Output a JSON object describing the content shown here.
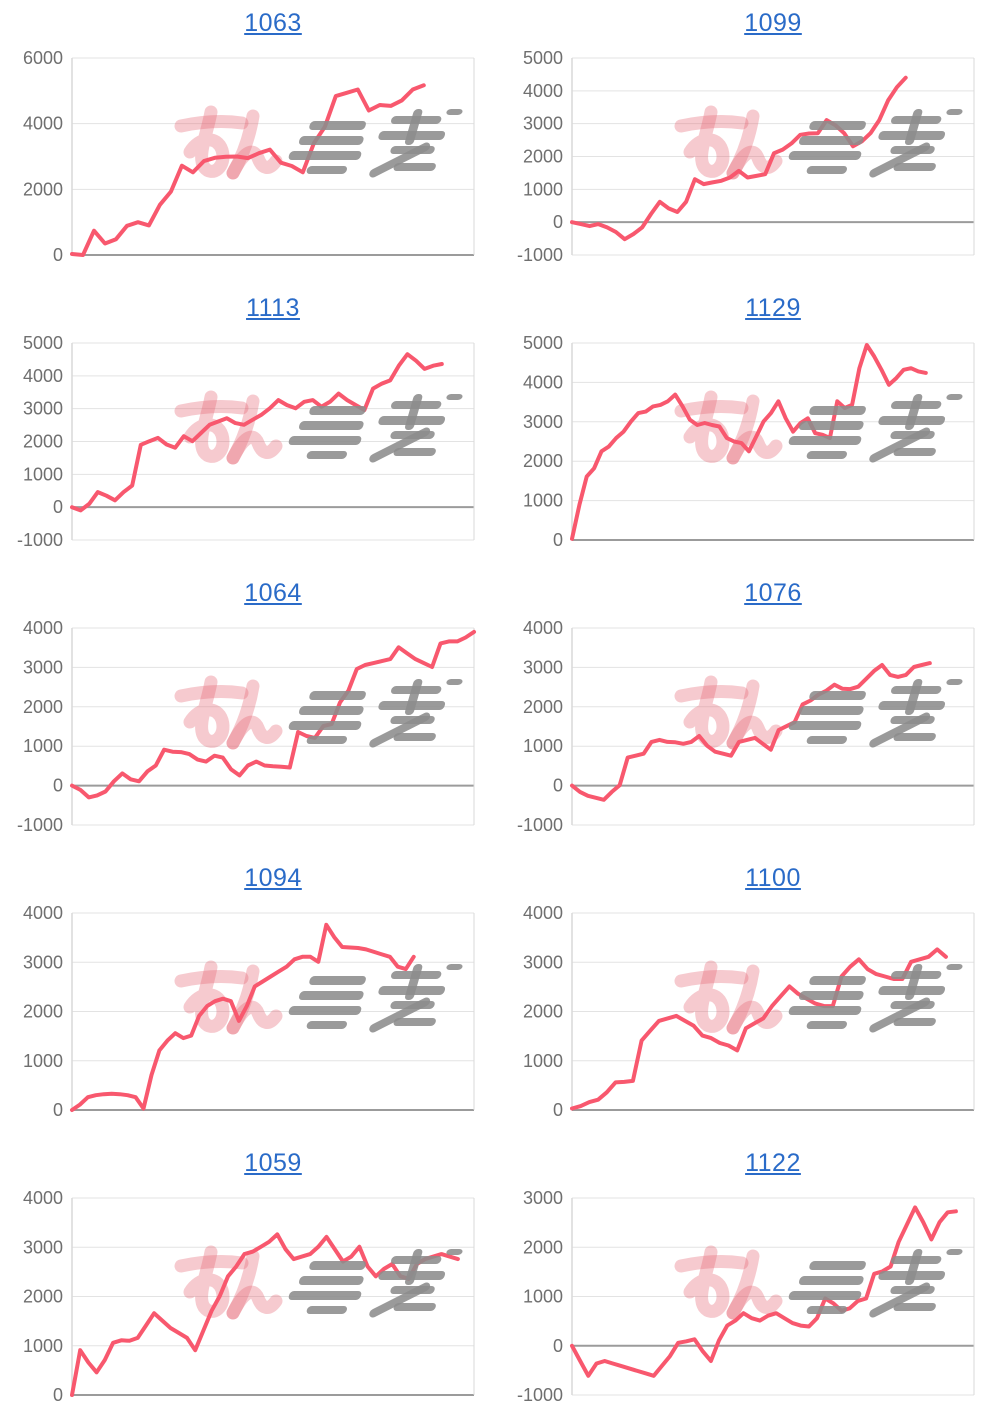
{
  "page": {
    "background": "#ffffff",
    "layout": "2x5 grid of daily slump graphs",
    "watermark": {
      "description": "site logo watermark, pink kana + gray speed-line glyphs",
      "pink_color": "rgba(228,100,114,0.34)",
      "gray_color": "rgba(140,140,140,0.88)"
    }
  },
  "styles": {
    "line_color": "#F8586E",
    "title_color": "#2A6BC8",
    "tick_color": "#6F6F6F",
    "grid_color": "#E3E3E3",
    "zero_line_color": "#9B9B9B",
    "border_color": "#D9D9D9"
  },
  "chart_data": [
    {
      "type": "line",
      "title": "1063",
      "xlabel": "",
      "ylabel": "",
      "ylim": [
        0,
        6000
      ],
      "ytick_step": 2000,
      "grid": "horizontal",
      "legend": "none",
      "x_extent": 0.875,
      "values": [
        30,
        0,
        740,
        350,
        480,
        890,
        1000,
        900,
        1530,
        1930,
        2720,
        2520,
        2860,
        2960,
        2990,
        3000,
        2950,
        3100,
        3210,
        2810,
        2710,
        2520,
        3400,
        3900,
        4840,
        4940,
        5040,
        4400,
        4570,
        4540,
        4710,
        5040,
        5170
      ]
    },
    {
      "type": "line",
      "title": "1099",
      "xlabel": "",
      "ylabel": "",
      "ylim": [
        -1000,
        5000
      ],
      "ytick_step": 1000,
      "grid": "horizontal",
      "legend": "none",
      "x_extent": 0.83,
      "values": [
        0,
        -60,
        -120,
        -60,
        -160,
        -300,
        -520,
        -360,
        -160,
        250,
        620,
        420,
        310,
        620,
        1310,
        1160,
        1210,
        1260,
        1360,
        1560,
        1360,
        1410,
        1460,
        2100,
        2210,
        2400,
        2660,
        2700,
        2710,
        3110,
        2950,
        2710,
        2310,
        2460,
        2710,
        3110,
        3710,
        4110,
        4400
      ]
    },
    {
      "type": "line",
      "title": "1113",
      "xlabel": "",
      "ylabel": "",
      "ylim": [
        -1000,
        5000
      ],
      "ytick_step": 1000,
      "grid": "horizontal",
      "legend": "none",
      "x_extent": 0.92,
      "values": [
        0,
        -100,
        100,
        460,
        350,
        210,
        460,
        660,
        1900,
        2010,
        2110,
        1910,
        1810,
        2160,
        2010,
        2260,
        2510,
        2610,
        2710,
        2560,
        2510,
        2660,
        2810,
        3010,
        3260,
        3110,
        3010,
        3210,
        3260,
        3060,
        3210,
        3460,
        3260,
        3110,
        2960,
        3610,
        3760,
        3860,
        4310,
        4660,
        4460,
        4210,
        4310,
        4360
      ]
    },
    {
      "type": "line",
      "title": "1129",
      "xlabel": "",
      "ylabel": "",
      "ylim": [
        0,
        5000
      ],
      "ytick_step": 1000,
      "grid": "horizontal",
      "legend": "none",
      "x_extent": 0.88,
      "values": [
        30,
        890,
        1610,
        1820,
        2250,
        2370,
        2590,
        2750,
        3010,
        3220,
        3260,
        3390,
        3430,
        3520,
        3690,
        3390,
        3050,
        2920,
        2970,
        2920,
        2880,
        2590,
        2500,
        2460,
        2250,
        2630,
        3010,
        3220,
        3520,
        3090,
        2750,
        2970,
        3090,
        2710,
        2670,
        2590,
        3520,
        3350,
        3430,
        4360,
        4950,
        4660,
        4320,
        3940,
        4110,
        4320,
        4360,
        4280,
        4240
      ]
    },
    {
      "type": "line",
      "title": "1064",
      "xlabel": "",
      "ylabel": "",
      "ylim": [
        -1000,
        4000
      ],
      "ytick_step": 1000,
      "grid": "horizontal",
      "legend": "none",
      "x_extent": 1.0,
      "values": [
        0,
        -110,
        -300,
        -250,
        -150,
        110,
        310,
        160,
        110,
        360,
        510,
        910,
        860,
        850,
        800,
        660,
        610,
        760,
        710,
        410,
        260,
        510,
        610,
        510,
        490,
        480,
        460,
        1360,
        1260,
        1210,
        1510,
        1560,
        2110,
        2410,
        2960,
        3060,
        3110,
        3160,
        3210,
        3510,
        3360,
        3210,
        3110,
        3010,
        3610,
        3660,
        3660,
        3760,
        3900
      ]
    },
    {
      "type": "line",
      "title": "1076",
      "xlabel": "",
      "ylabel": "",
      "ylim": [
        -1000,
        4000
      ],
      "ytick_step": 1000,
      "grid": "horizontal",
      "legend": "none",
      "x_extent": 0.89,
      "values": [
        0,
        -160,
        -260,
        -310,
        -360,
        -160,
        10,
        710,
        760,
        810,
        1110,
        1160,
        1110,
        1100,
        1060,
        1110,
        1260,
        1010,
        860,
        810,
        760,
        1110,
        1160,
        1210,
        1060,
        910,
        1410,
        1510,
        1610,
        2060,
        2160,
        2310,
        2410,
        2560,
        2460,
        2450,
        2510,
        2710,
        2910,
        3060,
        2810,
        2760,
        2810,
        3010,
        3060,
        3110
      ]
    },
    {
      "type": "line",
      "title": "1094",
      "xlabel": "",
      "ylabel": "",
      "ylim": [
        0,
        4000
      ],
      "ytick_step": 1000,
      "grid": "horizontal",
      "legend": "none",
      "x_extent": 0.85,
      "values": [
        0,
        110,
        260,
        300,
        320,
        330,
        320,
        300,
        260,
        30,
        710,
        1210,
        1410,
        1560,
        1460,
        1510,
        1910,
        2110,
        2210,
        2260,
        2210,
        1810,
        2110,
        2510,
        2610,
        2710,
        2810,
        2910,
        3060,
        3110,
        3110,
        3010,
        3760,
        3510,
        3310,
        3300,
        3290,
        3260,
        3210,
        3160,
        3110,
        2910,
        2860,
        3110
      ]
    },
    {
      "type": "line",
      "title": "1100",
      "xlabel": "",
      "ylabel": "",
      "ylim": [
        0,
        4000
      ],
      "ytick_step": 1000,
      "grid": "horizontal",
      "legend": "none",
      "x_extent": 0.93,
      "values": [
        30,
        80,
        160,
        210,
        360,
        560,
        570,
        590,
        1410,
        1610,
        1810,
        1860,
        1910,
        1810,
        1710,
        1510,
        1460,
        1360,
        1310,
        1210,
        1660,
        1760,
        1860,
        2110,
        2310,
        2510,
        2360,
        2260,
        2160,
        2110,
        2110,
        2710,
        2910,
        3060,
        2860,
        2760,
        2710,
        2660,
        2660,
        3010,
        3060,
        3110,
        3260,
        3110
      ]
    },
    {
      "type": "line",
      "title": "1059",
      "xlabel": "",
      "ylabel": "",
      "ylim": [
        0,
        4000
      ],
      "ytick_step": 1000,
      "grid": "horizontal",
      "legend": "none",
      "x_extent": 0.96,
      "values": [
        0,
        910,
        660,
        460,
        710,
        1060,
        1110,
        1100,
        1160,
        1410,
        1660,
        1510,
        1360,
        1260,
        1160,
        910,
        1310,
        1710,
        2010,
        2410,
        2610,
        2860,
        2910,
        3010,
        3110,
        3260,
        2960,
        2760,
        2810,
        2860,
        3010,
        3210,
        2960,
        2710,
        2810,
        3010,
        2610,
        2410,
        2560,
        2660,
        2410,
        2360,
        2660,
        2760,
        2810,
        2860,
        2810,
        2760
      ]
    },
    {
      "type": "line",
      "title": "1122",
      "xlabel": "",
      "ylabel": "",
      "ylim": [
        -1000,
        3000
      ],
      "ytick_step": 1000,
      "grid": "horizontal",
      "legend": "none",
      "x_extent": 0.955,
      "values": [
        0,
        -310,
        -610,
        -360,
        -310,
        -360,
        -410,
        -460,
        -510,
        -560,
        -610,
        -410,
        -210,
        60,
        90,
        130,
        -110,
        -310,
        110,
        410,
        510,
        660,
        560,
        510,
        610,
        660,
        560,
        460,
        410,
        390,
        560,
        960,
        860,
        710,
        760,
        910,
        960,
        1460,
        1510,
        1610,
        2110,
        2460,
        2810,
        2510,
        2160,
        2510,
        2710,
        2730
      ]
    }
  ]
}
